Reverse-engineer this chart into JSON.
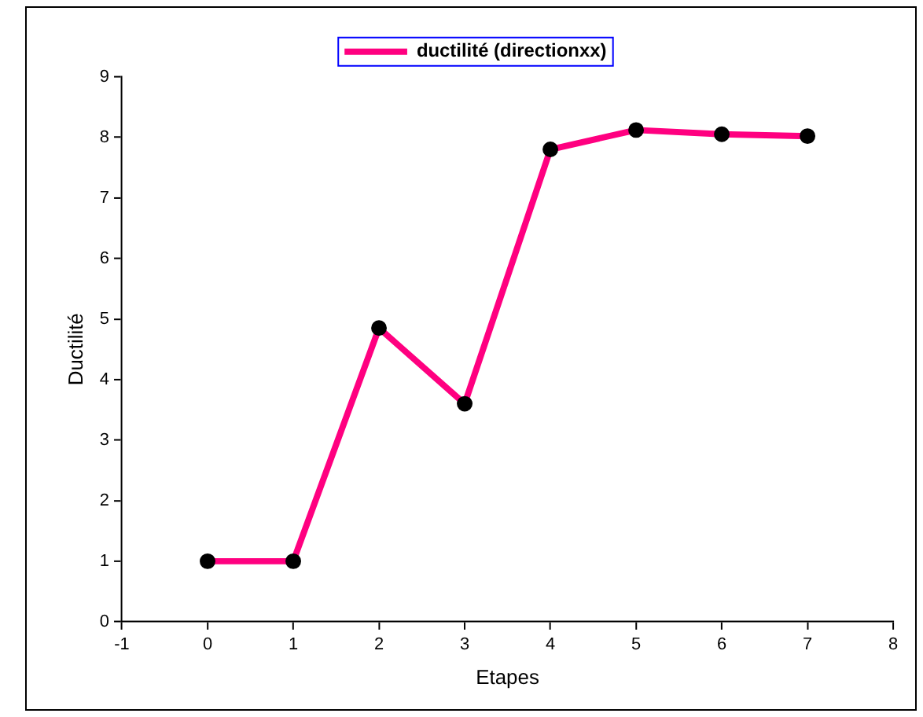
{
  "chart_data": {
    "type": "line",
    "xlabel": "Etapes",
    "ylabel": "Ductilité",
    "x": [
      0,
      1,
      2,
      3,
      4,
      5,
      6,
      7
    ],
    "series": [
      {
        "name": "ductilité (directionxx)",
        "color": "#ff0080",
        "values": [
          1,
          1,
          4.85,
          3.6,
          7.8,
          8.12,
          8.05,
          8.02
        ]
      }
    ],
    "xlim": [
      -1,
      8
    ],
    "xticks": [
      -1,
      0,
      1,
      2,
      3,
      4,
      5,
      6,
      7,
      8
    ],
    "ylim": [
      0,
      9
    ],
    "yticks": [
      0,
      1,
      2,
      3,
      4,
      5,
      6,
      7,
      8,
      9
    ],
    "grid": false,
    "legend": "top",
    "marker": "circle",
    "line_style": "solid"
  }
}
